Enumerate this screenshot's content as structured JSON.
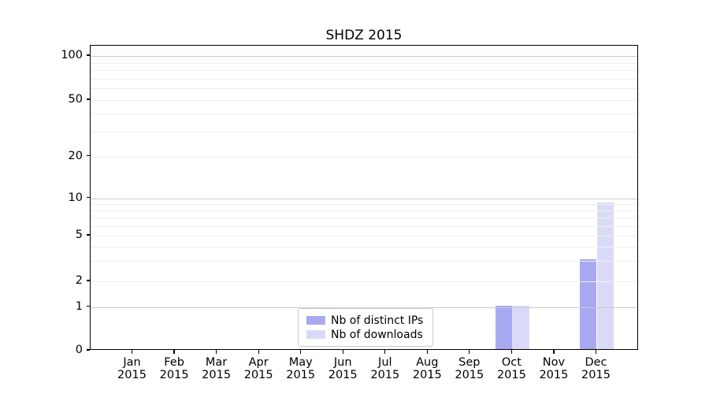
{
  "chart_data": {
    "type": "bar",
    "title": "SHDZ 2015",
    "categories": [
      "Jan",
      "Feb",
      "Mar",
      "Apr",
      "May",
      "Jun",
      "Jul",
      "Aug",
      "Sep",
      "Oct",
      "Nov",
      "Dec"
    ],
    "category_year": "2015",
    "series": [
      {
        "name": "Nb of distinct IPs",
        "color": "#a9a9f2",
        "values": [
          0,
          0,
          0,
          0,
          0,
          0,
          0,
          0,
          0,
          1,
          0,
          3
        ]
      },
      {
        "name": "Nb of downloads",
        "color": "#dadaf8",
        "values": [
          0,
          0,
          0,
          0,
          0,
          0,
          0,
          0,
          0,
          1,
          0,
          9
        ]
      }
    ],
    "xlabel": "",
    "ylabel": "",
    "yscale": "symlog",
    "ylim": [
      0,
      100
    ],
    "y_major_ticks": [
      0,
      1,
      2,
      5,
      10,
      20,
      50,
      100
    ],
    "y_minor_gridlines": [
      3,
      4,
      6,
      7,
      8,
      9,
      30,
      40,
      60,
      70,
      80,
      90
    ],
    "grid": "on",
    "legend_position": "lower-center",
    "bar_layout": "side-by-side"
  },
  "colors": {
    "decade_gridline": "#c9c9c9",
    "minor_gridline": "#efefef",
    "spine": "#000000",
    "legend_border": "#cccccc",
    "background": "#ffffff",
    "text": "#000000"
  }
}
